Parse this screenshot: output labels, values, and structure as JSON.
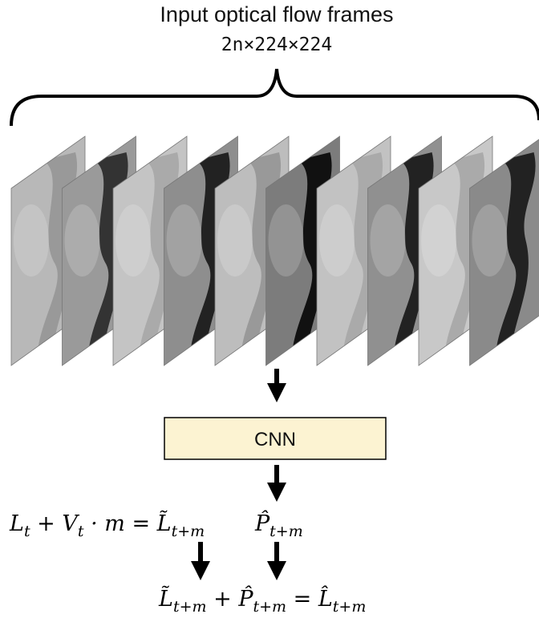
{
  "header": {
    "title": "Input optical flow frames",
    "subtitle": "2n×224×224"
  },
  "model": {
    "label": "CNN"
  },
  "equations": {
    "linear": [
      {
        "text": "L",
        "sub": "t"
      },
      {
        "text": " + "
      },
      {
        "text": "V",
        "sub": "t"
      },
      {
        "text": " · m = "
      },
      {
        "text": "L̃",
        "sub": "t+m"
      }
    ],
    "prediction": [
      {
        "text": "P̂",
        "sub": "t+m"
      }
    ],
    "final": [
      {
        "text": "L̃",
        "sub": "t+m"
      },
      {
        "text": " + "
      },
      {
        "text": "P̂",
        "sub": "t+m"
      },
      {
        "text": " = "
      },
      {
        "text": "L̂",
        "sub": "t+m"
      }
    ]
  }
}
